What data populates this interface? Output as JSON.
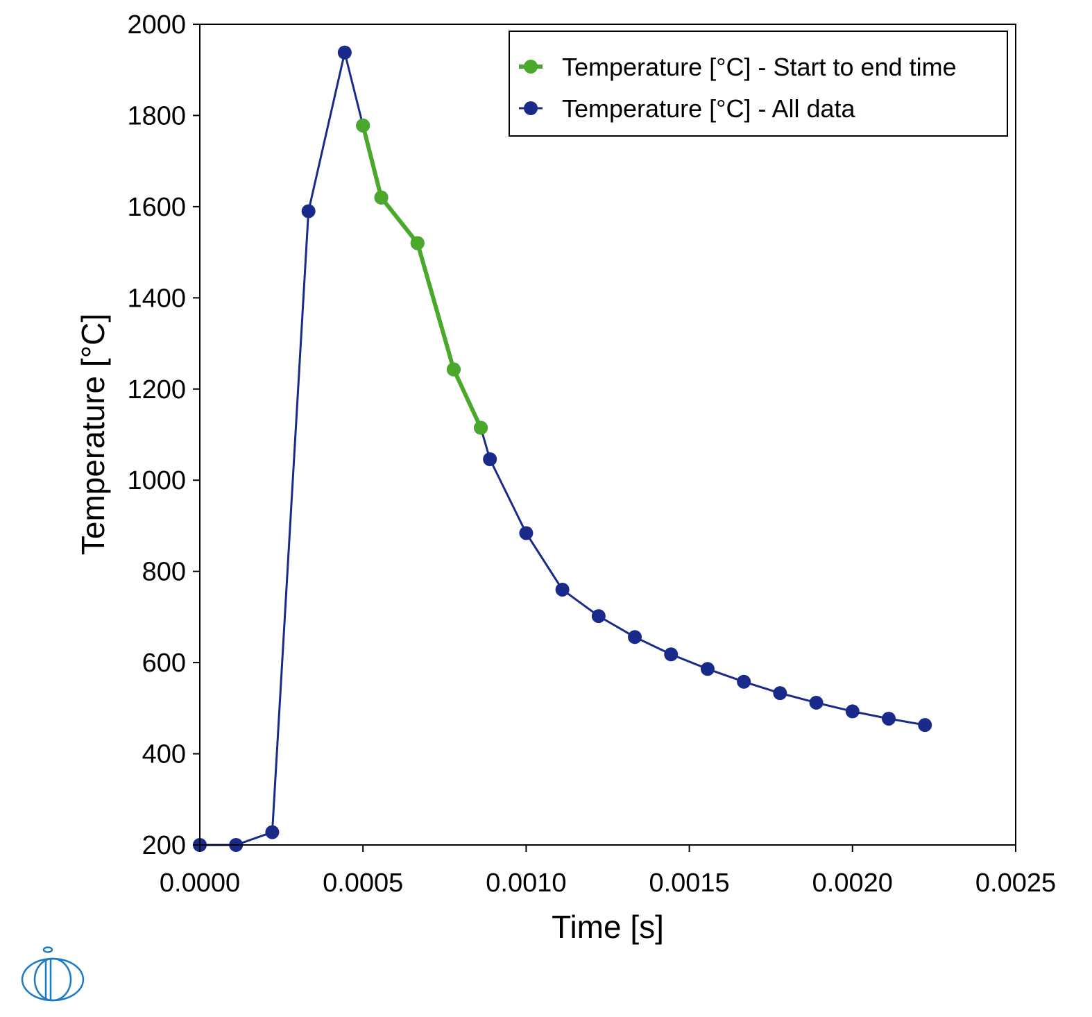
{
  "chart_data": {
    "type": "line",
    "xlabel": "Time [s]",
    "ylabel": "Temperature [°C]",
    "xlim": [
      0,
      0.0025
    ],
    "ylim": [
      200,
      2000
    ],
    "x_ticks": [
      "0.0000",
      "0.0005",
      "0.0010",
      "0.0015",
      "0.0020",
      "0.0025"
    ],
    "y_ticks": [
      "200",
      "400",
      "600",
      "800",
      "1000",
      "1200",
      "1400",
      "1600",
      "1800",
      "2000"
    ],
    "grid": false,
    "legend_position": "top-right",
    "series": [
      {
        "name": "Temperature [°C] - All data",
        "color": "#1a2a8a",
        "x": [
          0,
          0.000111,
          0.000222,
          0.000333,
          0.000444,
          0.0005,
          0.000556,
          0.000667,
          0.000778,
          0.000861,
          0.000889,
          0.001,
          0.001111,
          0.001222,
          0.001333,
          0.001444,
          0.001556,
          0.001667,
          0.001778,
          0.001889,
          0.002,
          0.002111,
          0.002222
        ],
        "y": [
          200,
          200,
          228,
          1590,
          1938,
          1778,
          1620,
          1520,
          1243,
          1115,
          1046,
          884,
          760,
          702,
          656,
          618,
          586,
          558,
          533,
          512,
          493,
          477,
          463
        ]
      },
      {
        "name": "Temperature [°C] - Start to end time",
        "color": "#4aa82a",
        "x": [
          0.0005,
          0.000556,
          0.000667,
          0.000778,
          0.000861
        ],
        "y": [
          1778,
          1620,
          1520,
          1243,
          1115
        ]
      }
    ]
  },
  "logo": {
    "name": "company-logo",
    "color": "#1a7ac8"
  }
}
